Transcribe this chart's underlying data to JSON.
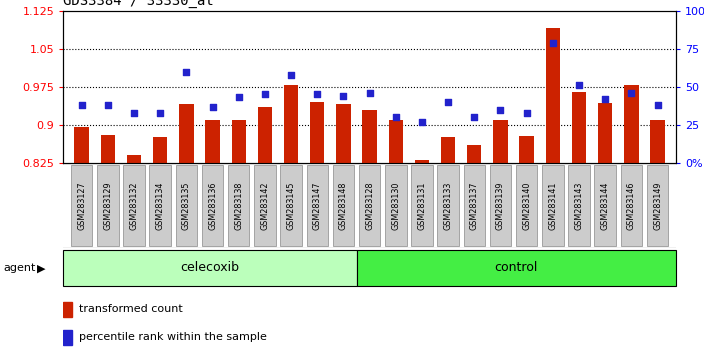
{
  "title": "GDS3384 / 33330_at",
  "samples": [
    "GSM283127",
    "GSM283129",
    "GSM283132",
    "GSM283134",
    "GSM283135",
    "GSM283136",
    "GSM283138",
    "GSM283142",
    "GSM283145",
    "GSM283147",
    "GSM283148",
    "GSM283128",
    "GSM283130",
    "GSM283131",
    "GSM283133",
    "GSM283137",
    "GSM283139",
    "GSM283140",
    "GSM283141",
    "GSM283143",
    "GSM283144",
    "GSM283146",
    "GSM283149"
  ],
  "bar_values": [
    0.895,
    0.88,
    0.84,
    0.875,
    0.94,
    0.91,
    0.91,
    0.935,
    0.978,
    0.945,
    0.94,
    0.93,
    0.91,
    0.83,
    0.875,
    0.86,
    0.91,
    0.878,
    1.09,
    0.965,
    0.942,
    0.978,
    0.91
  ],
  "dot_values": [
    0.38,
    0.38,
    0.33,
    0.33,
    0.6,
    0.37,
    0.43,
    0.45,
    0.58,
    0.45,
    0.44,
    0.46,
    0.3,
    0.27,
    0.4,
    0.3,
    0.35,
    0.33,
    0.79,
    0.51,
    0.42,
    0.46,
    0.38
  ],
  "celecoxib_count": 11,
  "control_count": 12,
  "ylim_left": [
    0.825,
    1.125
  ],
  "ylim_right": [
    0.0,
    1.0
  ],
  "yticks_left": [
    0.825,
    0.9,
    0.975,
    1.05,
    1.125
  ],
  "ytick_labels_left": [
    "0.825",
    "0.9",
    "0.975",
    "1.05",
    "1.125"
  ],
  "yticks_right": [
    0.0,
    0.25,
    0.5,
    0.75,
    1.0
  ],
  "ytick_labels_right": [
    "0%",
    "25",
    "50",
    "75",
    "100%"
  ],
  "grid_lines": [
    0.9,
    0.975,
    1.05
  ],
  "bar_color": "#cc2200",
  "dot_color": "#2222cc",
  "celecoxib_color": "#bbffbb",
  "control_color": "#44ee44",
  "xtick_bg": "#cccccc",
  "agent_label": "agent",
  "celecoxib_label": "celecoxib",
  "control_label": "control",
  "legend_bar": "transformed count",
  "legend_dot": "percentile rank within the sample",
  "bar_bottom": 0.825
}
